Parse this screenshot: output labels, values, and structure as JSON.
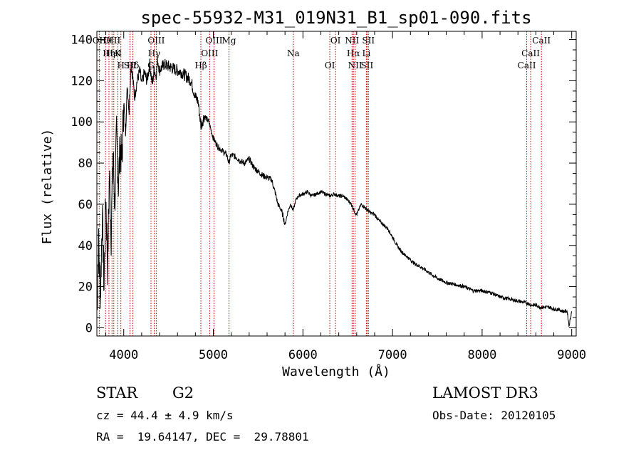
{
  "chart_data": {
    "type": "line",
    "title": "spec-55932-M31_019N31_B1_sp01-090.fits",
    "xlabel": "Wavelength (Å)",
    "ylabel": "Flux (relative)",
    "xlim": [
      3700,
      9050
    ],
    "ylim": [
      -4,
      144
    ],
    "xticks": [
      4000,
      5000,
      6000,
      7000,
      8000,
      9000
    ],
    "yticks": [
      0,
      20,
      40,
      60,
      80,
      100,
      120,
      140
    ],
    "series": [
      {
        "name": "flux",
        "x": [
          3700,
          3720,
          3740,
          3760,
          3780,
          3800,
          3820,
          3840,
          3860,
          3880,
          3900,
          3920,
          3940,
          3960,
          3980,
          4000,
          4020,
          4040,
          4060,
          4080,
          4100,
          4120,
          4150,
          4180,
          4200,
          4230,
          4260,
          4290,
          4320,
          4340,
          4360,
          4380,
          4400,
          4450,
          4500,
          4550,
          4600,
          4650,
          4700,
          4750,
          4800,
          4830,
          4861,
          4900,
          4950,
          5000,
          5050,
          5100,
          5150,
          5172,
          5200,
          5250,
          5300,
          5350,
          5400,
          5450,
          5500,
          5550,
          5600,
          5650,
          5700,
          5720,
          5750,
          5780,
          5800,
          5830,
          5860,
          5893,
          5920,
          5950,
          6000,
          6050,
          6100,
          6150,
          6200,
          6250,
          6300,
          6350,
          6400,
          6450,
          6500,
          6540,
          6563,
          6580,
          6600,
          6650,
          6700,
          6750,
          6800,
          6850,
          6900,
          6950,
          7000,
          7050,
          7100,
          7150,
          7200,
          7250,
          7300,
          7400,
          7500,
          7600,
          7700,
          7800,
          7900,
          8000,
          8100,
          8200,
          8300,
          8400,
          8500,
          8550,
          8600,
          8650,
          8700,
          8750,
          8800,
          8850,
          8900,
          8950,
          8970,
          9000
        ],
        "values": [
          8,
          40,
          15,
          55,
          20,
          65,
          30,
          75,
          45,
          85,
          60,
          95,
          70,
          88,
          80,
          110,
          95,
          118,
          105,
          128,
          122,
          112,
          120,
          125,
          118,
          124,
          120,
          128,
          118,
          126,
          122,
          130,
          125,
          128,
          127,
          126,
          125,
          124,
          122,
          120,
          112,
          110,
          98,
          103,
          100,
          92,
          88,
          86,
          84,
          80,
          84,
          83,
          81,
          80,
          82,
          78,
          76,
          74,
          73,
          72,
          64,
          60,
          58,
          54,
          50,
          56,
          60,
          57,
          62,
          64,
          65,
          66,
          64,
          65,
          66,
          65,
          64,
          65,
          64,
          64,
          62,
          60,
          58,
          56,
          55,
          60,
          58,
          56,
          55,
          52,
          50,
          48,
          44,
          40,
          37,
          35,
          33,
          31,
          30,
          27,
          24,
          22,
          21,
          20,
          18,
          18,
          17,
          15,
          14,
          13,
          12,
          11,
          11,
          10,
          10,
          10,
          9,
          9,
          8,
          8,
          1,
          8
        ]
      }
    ],
    "line_ids": [
      {
        "label": "Hθ",
        "wavelength": 3797
      },
      {
        "label": "K",
        "wavelength": 3934
      },
      {
        "label": "Hδ",
        "wavelength": 4102
      },
      {
        "label": "OII",
        "wavelength": 3727
      },
      {
        "label": "HeI",
        "wavelength": 3889
      },
      {
        "label": "SII",
        "wavelength": 4070
      },
      {
        "label": "OIII",
        "wavelength": 3869
      },
      {
        "label": "Hη",
        "wavelength": 3835
      },
      {
        "label": "H",
        "wavelength": 3968
      },
      {
        "label": "OIII",
        "wavelength": 4363
      },
      {
        "label": "Hγ",
        "wavelength": 4340
      },
      {
        "label": "G",
        "wavelength": 4304
      },
      {
        "label": "OIII",
        "wavelength": 5007
      },
      {
        "label": "OIII",
        "wavelength": 4959
      },
      {
        "label": "Hβ",
        "wavelength": 4861
      },
      {
        "label": "Mg",
        "wavelength": 5175
      },
      {
        "label": "Na",
        "wavelength": 5893
      },
      {
        "label": "OI",
        "wavelength": 6300
      },
      {
        "label": "OI",
        "wavelength": 6364
      },
      {
        "label": "Hα",
        "wavelength": 6563
      },
      {
        "label": "SII",
        "wavelength": 6716
      },
      {
        "label": "NII",
        "wavelength": 6548
      },
      {
        "label": "Li",
        "wavelength": 6708
      },
      {
        "label": "NII",
        "wavelength": 6583
      },
      {
        "label": "SII",
        "wavelength": 6731
      },
      {
        "label": "CaII",
        "wavelength": 8542
      },
      {
        "label": "CaII",
        "wavelength": 8498
      },
      {
        "label": "CaII",
        "wavelength": 8662
      }
    ]
  },
  "info": {
    "class": "STAR",
    "subclass": "G2",
    "survey": "LAMOST DR3",
    "cz": "cz = 44.4 ± 4.9 km/s",
    "obs_date": "Obs-Date: 20120105",
    "coords": "RA =  19.64147, DEC =  29.78801"
  }
}
